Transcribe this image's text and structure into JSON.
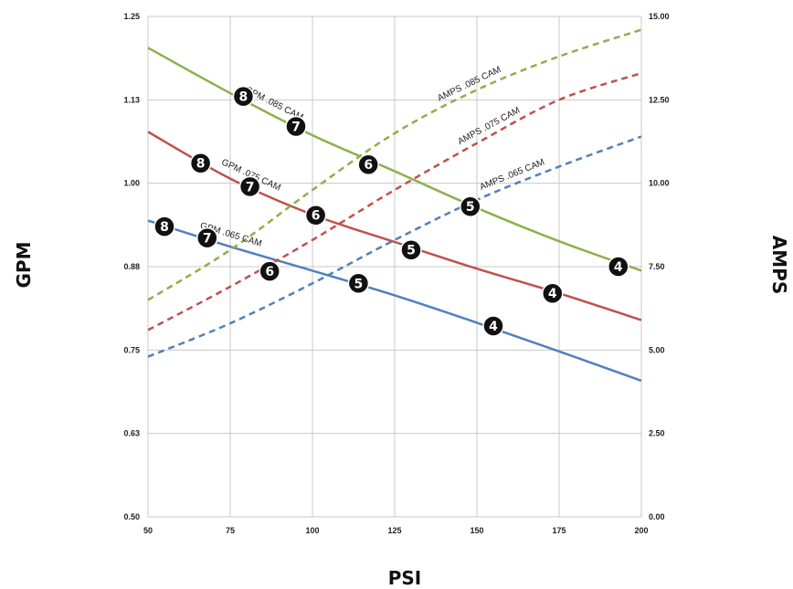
{
  "chart_data": {
    "type": "line",
    "xlabel": "PSI",
    "ylabel_left": "GPM",
    "ylabel_right": "AMPS",
    "x_range": [
      50,
      200
    ],
    "x_ticks": [
      "50",
      "75",
      "100",
      "125",
      "150",
      "175",
      "200"
    ],
    "y_left_range": [
      0.5,
      1.25
    ],
    "y_left_ticks": [
      "0.50",
      "0.63",
      "0.75",
      "0.88",
      "1.00",
      "1.13",
      "1.25"
    ],
    "y_right_range": [
      0,
      15
    ],
    "y_right_ticks": [
      "0.00",
      "2.50",
      "5.00",
      "7.50",
      "10.00",
      "12.50",
      "15.00"
    ],
    "grid": true,
    "colors": {
      "green": "#8db04a",
      "red": "#c0504d",
      "blue": "#4f81bd"
    },
    "series": [
      {
        "name": "GPM .085 CAM",
        "axis": "left",
        "style": "solid",
        "color": "#8db04a",
        "x": [
          50,
          75,
          100,
          125,
          150,
          175,
          200
        ],
        "y": [
          1.203,
          1.135,
          1.072,
          1.018,
          0.963,
          0.913,
          0.869
        ]
      },
      {
        "name": "GPM .075 CAM",
        "axis": "left",
        "style": "solid",
        "color": "#c0504d",
        "x": [
          50,
          75,
          100,
          125,
          150,
          175,
          200
        ],
        "y": [
          1.077,
          1.007,
          0.953,
          0.912,
          0.872,
          0.835,
          0.795
        ]
      },
      {
        "name": "GPM .065 CAM",
        "axis": "left",
        "style": "solid",
        "color": "#4f81bd",
        "x": [
          50,
          75,
          100,
          125,
          150,
          175,
          200
        ],
        "y": [
          0.944,
          0.905,
          0.869,
          0.832,
          0.791,
          0.748,
          0.704
        ]
      },
      {
        "name": "AMPS .085 CAM",
        "axis": "right",
        "style": "dashed",
        "color": "#8db04a",
        "x": [
          50,
          75,
          100,
          125,
          150,
          175,
          200
        ],
        "y": [
          6.5,
          8.0,
          9.8,
          11.5,
          12.8,
          13.8,
          14.6
        ]
      },
      {
        "name": "AMPS .075 CAM",
        "axis": "right",
        "style": "dashed",
        "color": "#c0504d",
        "x": [
          50,
          75,
          100,
          125,
          150,
          175,
          200
        ],
        "y": [
          5.6,
          6.9,
          8.3,
          9.8,
          11.2,
          12.5,
          13.3
        ]
      },
      {
        "name": "AMPS .065 CAM",
        "axis": "right",
        "style": "dashed",
        "color": "#4f81bd",
        "x": [
          50,
          75,
          100,
          125,
          150,
          175,
          200
        ],
        "y": [
          4.8,
          5.8,
          7.0,
          8.3,
          9.5,
          10.5,
          11.4
        ]
      }
    ],
    "markers": [
      {
        "label": "8",
        "x": 79,
        "y": 1.13
      },
      {
        "label": "7",
        "x": 95,
        "y": 1.085
      },
      {
        "label": "6",
        "x": 117,
        "y": 1.028
      },
      {
        "label": "5",
        "x": 148,
        "y": 0.965
      },
      {
        "label": "4",
        "x": 193,
        "y": 0.875
      },
      {
        "label": "8",
        "x": 66,
        "y": 1.03
      },
      {
        "label": "7",
        "x": 81,
        "y": 0.995
      },
      {
        "label": "6",
        "x": 101,
        "y": 0.952
      },
      {
        "label": "5",
        "x": 130,
        "y": 0.9
      },
      {
        "label": "4",
        "x": 173,
        "y": 0.835
      },
      {
        "label": "8",
        "x": 55,
        "y": 0.935
      },
      {
        "label": "7",
        "x": 68,
        "y": 0.918
      },
      {
        "label": "6",
        "x": 87,
        "y": 0.868
      },
      {
        "label": "5",
        "x": 114,
        "y": 0.85
      },
      {
        "label": "4",
        "x": 155,
        "y": 0.786
      }
    ]
  }
}
